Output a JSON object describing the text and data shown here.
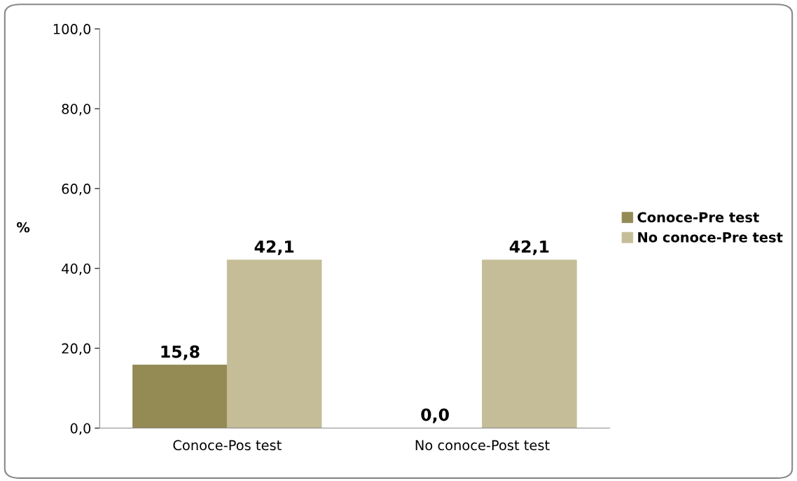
{
  "chart_data": {
    "type": "bar",
    "ylabel": "%",
    "categories": [
      "Conoce-Pos test",
      "No conoce-Post test"
    ],
    "series": [
      {
        "name": "Conoce-Pre test",
        "color": "#948a54",
        "values": [
          15.8,
          0.0
        ],
        "value_labels": [
          "15,8",
          "0,0"
        ]
      },
      {
        "name": "No conoce-Pre test",
        "color": "#c4bd97",
        "values": [
          42.1,
          42.1
        ],
        "value_labels": [
          "42,1",
          "42,1"
        ]
      }
    ],
    "ylim": [
      0,
      100
    ],
    "yticks": [
      {
        "value": 0,
        "label": "0,0"
      },
      {
        "value": 20,
        "label": "20,0"
      },
      {
        "value": 40,
        "label": "40,0"
      },
      {
        "value": 60,
        "label": "60,0"
      },
      {
        "value": 80,
        "label": "80,0"
      },
      {
        "value": 100,
        "label": "100,0"
      }
    ],
    "grid": false,
    "legend": "right"
  }
}
